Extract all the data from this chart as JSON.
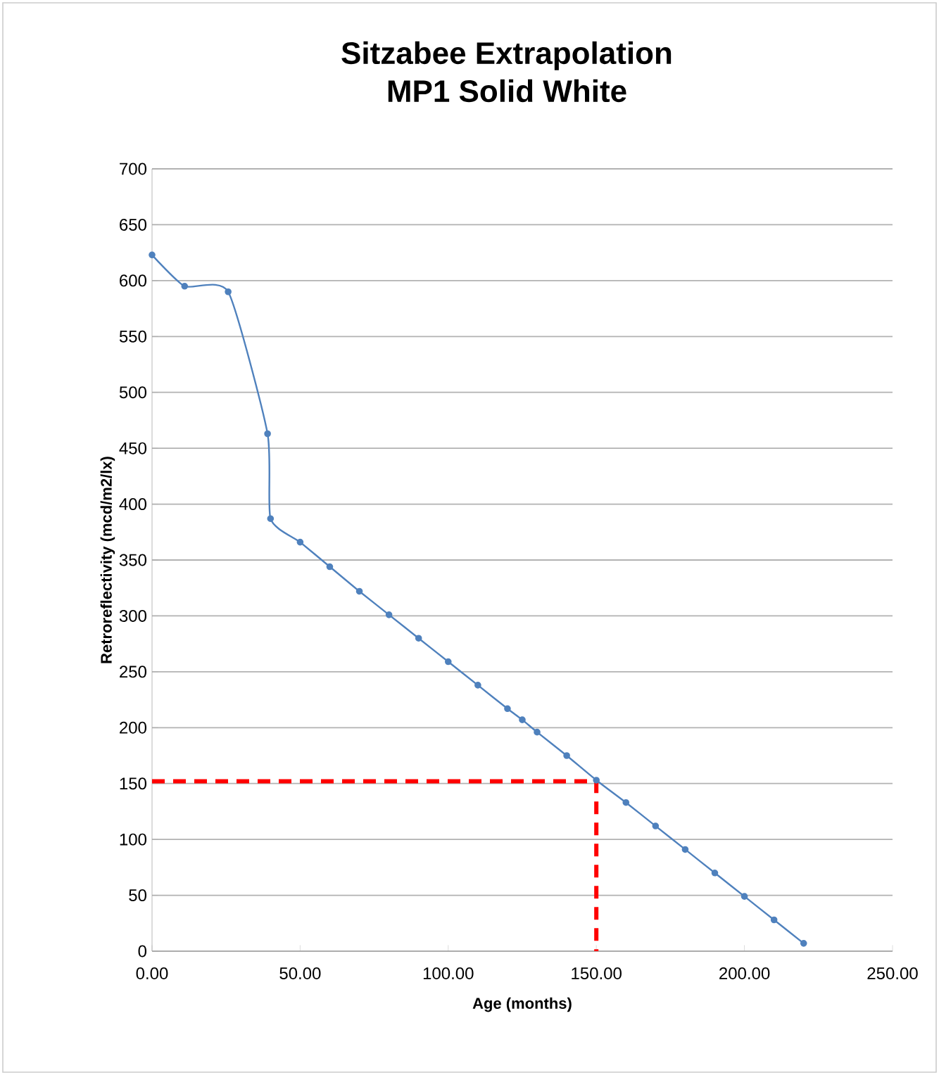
{
  "chart_data": {
    "type": "line",
    "title": "Sitzabee Extrapolation\nMP1 Solid White",
    "xlabel": "Age (months)",
    "ylabel": "Retroreflectivity (mcd/m2/lx)",
    "series": [
      {
        "color": "#4f81bd",
        "marker": "circle",
        "line_style": "solid",
        "x": [
          0,
          11,
          25.7,
          39,
          40,
          50,
          60,
          70,
          80,
          90,
          100,
          110,
          120,
          125,
          130,
          140,
          150,
          160,
          170,
          180,
          190,
          200,
          210,
          220
        ],
        "values": [
          623,
          595,
          590,
          463,
          387,
          366,
          344,
          322,
          301,
          280,
          259,
          238,
          217,
          207,
          196,
          175,
          153,
          133,
          112,
          91,
          70,
          49,
          28,
          7
        ]
      },
      {
        "type": "line",
        "color": "#ff0000",
        "marker": "none",
        "line_style": "dashed",
        "x": [
          0,
          150,
          150
        ],
        "values": [
          152,
          152,
          0
        ]
      }
    ],
    "xlim": [
      0,
      250
    ],
    "ylim": [
      0,
      700
    ],
    "xticks": [
      {
        "value": 0,
        "label": "0.00"
      },
      {
        "value": 50,
        "label": "50.00"
      },
      {
        "value": 100,
        "label": "100.00"
      },
      {
        "value": 150,
        "label": "150.00"
      },
      {
        "value": 200,
        "label": "200.00"
      },
      {
        "value": 250,
        "label": "250.00"
      }
    ],
    "yticks": [
      0,
      50,
      100,
      150,
      200,
      250,
      300,
      350,
      400,
      450,
      500,
      550,
      600,
      650,
      700
    ],
    "grid": "y"
  }
}
